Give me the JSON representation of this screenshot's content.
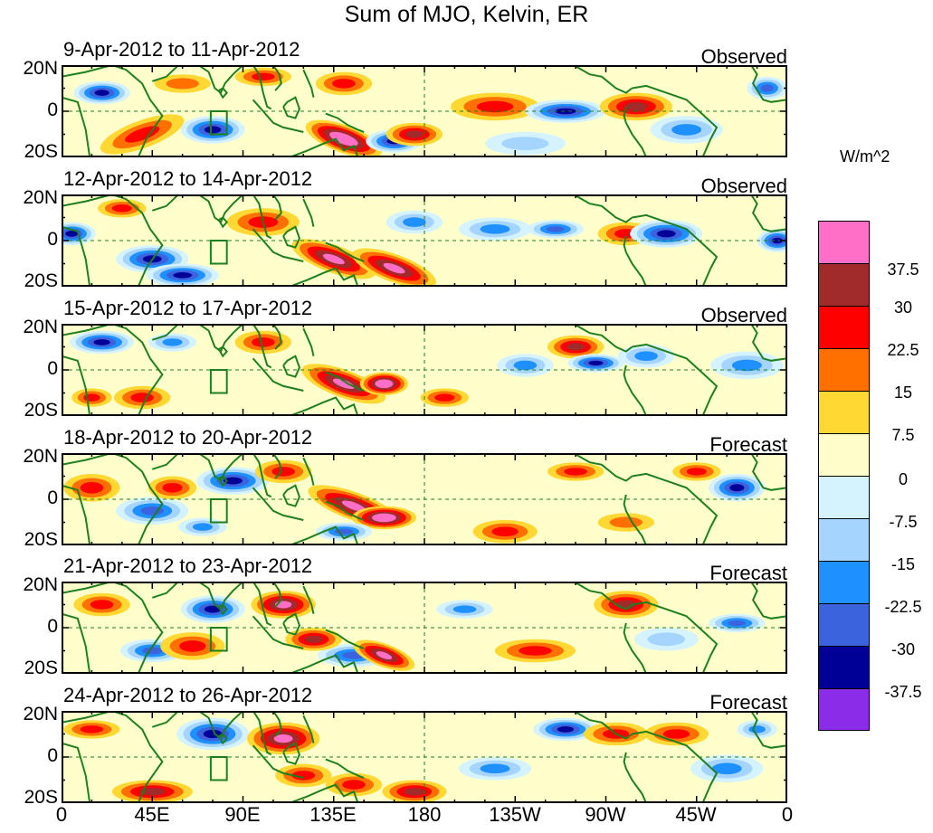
{
  "title": "Sum of MJO, Kelvin, ER",
  "units": "W/m^2",
  "panels": [
    {
      "date": "9-Apr-2012 to 11-Apr-2012",
      "status": "Observed"
    },
    {
      "date": "12-Apr-2012 to 14-Apr-2012",
      "status": "Observed"
    },
    {
      "date": "15-Apr-2012 to 17-Apr-2012",
      "status": "Observed"
    },
    {
      "date": "18-Apr-2012 to 20-Apr-2012",
      "status": "Forecast"
    },
    {
      "date": "21-Apr-2012 to 23-Apr-2012",
      "status": "Forecast"
    },
    {
      "date": "24-Apr-2012 to 26-Apr-2012",
      "status": "Forecast"
    }
  ],
  "lat_labels": [
    "20N",
    "0",
    "20S"
  ],
  "lon_labels": [
    "0",
    "45E",
    "90E",
    "135E",
    "180",
    "135W",
    "90W",
    "45W",
    "0"
  ],
  "colorbar": {
    "colors": [
      "#ff6ec7",
      "#a12a2a",
      "#ff0000",
      "#ff7000",
      "#ffd833",
      "#ffffcc",
      "#d5f3fe",
      "#a5d4fe",
      "#1f90ff",
      "#3c63de",
      "#000096",
      "#8a2ce8"
    ],
    "labels": [
      "37.5",
      "30",
      "22.5",
      "15",
      "7.5",
      "0",
      "-7.5",
      "-15",
      "-22.5",
      "-30",
      "-37.5"
    ]
  }
}
